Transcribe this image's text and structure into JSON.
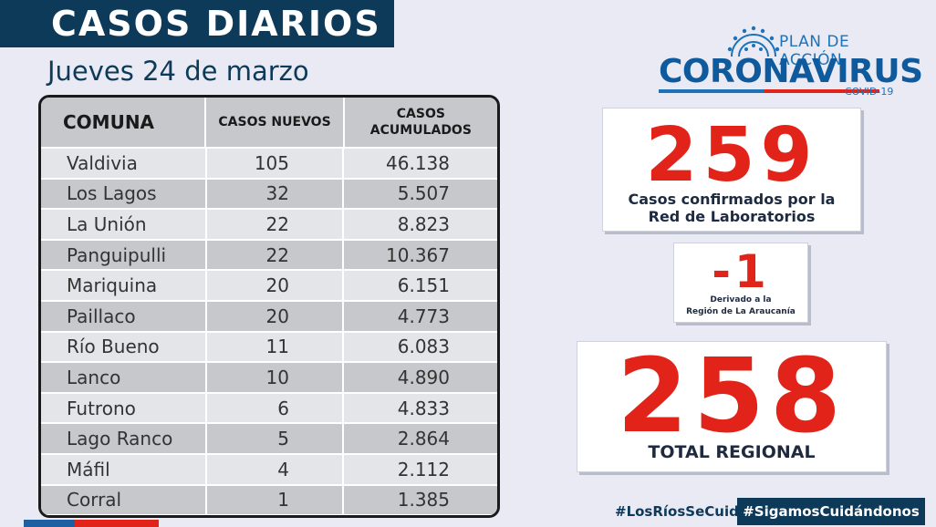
{
  "header": {
    "title": "CASOS DIARIOS",
    "date": "Jueves 24 de marzo"
  },
  "table": {
    "columns": [
      "COMUNA",
      "CASOS NUEVOS",
      "CASOS\nACUMULADOS"
    ],
    "rows": [
      {
        "comuna": "Valdivia",
        "nuevos": "105",
        "acumulados": "46.138"
      },
      {
        "comuna": "Los Lagos",
        "nuevos": "32",
        "acumulados": "5.507"
      },
      {
        "comuna": "La Unión",
        "nuevos": "22",
        "acumulados": "8.823"
      },
      {
        "comuna": "Panguipulli",
        "nuevos": "22",
        "acumulados": "10.367"
      },
      {
        "comuna": "Mariquina",
        "nuevos": "20",
        "acumulados": "6.151"
      },
      {
        "comuna": "Paillaco",
        "nuevos": "20",
        "acumulados": "4.773"
      },
      {
        "comuna": "Río Bueno",
        "nuevos": "11",
        "acumulados": "6.083"
      },
      {
        "comuna": "Lanco",
        "nuevos": "10",
        "acumulados": "4.890"
      },
      {
        "comuna": "Futrono",
        "nuevos": "6",
        "acumulados": "4.833"
      },
      {
        "comuna": "Lago Ranco",
        "nuevos": "5",
        "acumulados": "2.864"
      },
      {
        "comuna": "Máfil",
        "nuevos": "4",
        "acumulados": "2.112"
      },
      {
        "comuna": "Corral",
        "nuevos": "1",
        "acumulados": "1.385"
      }
    ]
  },
  "logo": {
    "plan": "PLAN DE ACCIÓN",
    "main": "CORONAVIRUS",
    "sub": "COVID-19",
    "icon": "virus-icon"
  },
  "stats": {
    "confirmed": {
      "value": "259",
      "caption": "Casos confirmados  por la\nRed de Laboratorios"
    },
    "derived": {
      "value": "-1",
      "caption": "Derivado a la\nRegión de La Araucanía"
    },
    "total": {
      "value": "258",
      "caption": "TOTAL REGIONAL"
    }
  },
  "footer": {
    "hashtag1": "#LosRíosSeCuida",
    "hashtag2": "#SigamosCuidándonos"
  },
  "colors": {
    "navy": "#0e3a5a",
    "red": "#e2231a",
    "blue": "#1d72b8"
  }
}
